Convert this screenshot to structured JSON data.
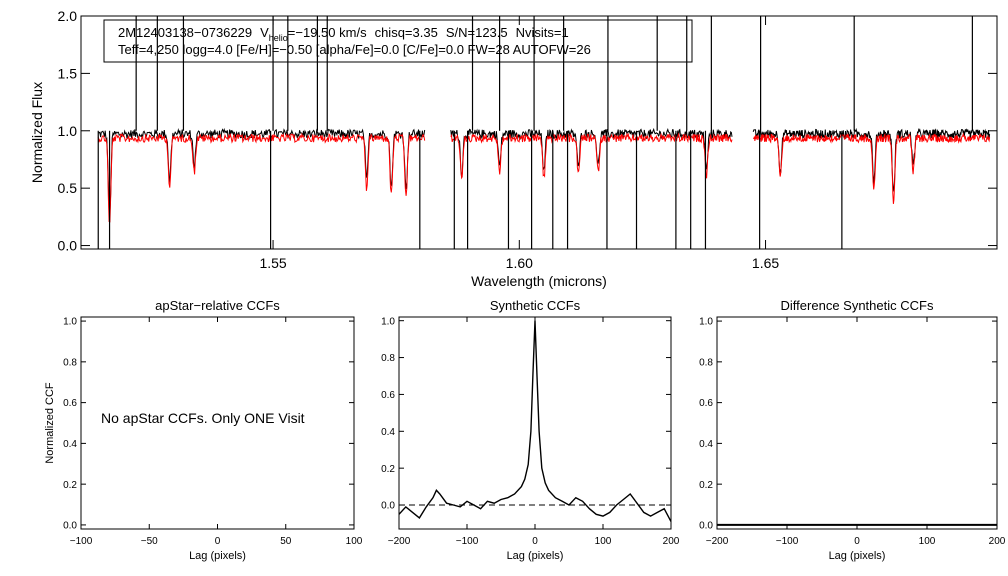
{
  "header": {
    "star_id": "2M12403138−0736229",
    "vhelio_symbol": "V",
    "vhelio_sub": "helio",
    "vhelio_value": "=−19.50 km/s",
    "chisq": "chisq=3.35",
    "snr": "S/N=123.5",
    "nvisits": "Nvisits=1",
    "params_line": "Teff=4,250 logg=4.0 [Fe/H]=−0.50 [alpha/Fe]=0.0 [C/Fe]=0.0 FW=28 AUTOFW=26"
  },
  "colors": {
    "observed": "#000000",
    "model": "#ff0000",
    "axes": "#000000"
  },
  "chart_data": [
    {
      "id": "spectrum",
      "type": "line",
      "title": "",
      "xlabel": "Wavelength (microns)",
      "ylabel": "Normalized Flux",
      "xlim": [
        1.511,
        1.697
      ],
      "ylim": [
        -0.03,
        2.0
      ],
      "xticks": [
        1.55,
        1.6,
        1.65
      ],
      "xtick_labels": [
        "1.55",
        "1.60",
        "1.65"
      ],
      "yticks": [
        0.0,
        0.5,
        1.0,
        1.5,
        2.0
      ],
      "ytick_labels": [
        "0.0",
        "0.5",
        "1.0",
        "1.5",
        "2.0"
      ],
      "chips": [
        [
          1.5145,
          1.5808
        ],
        [
          1.5861,
          1.6432
        ],
        [
          1.6475,
          1.6955
        ]
      ],
      "series": [
        {
          "name": "observed",
          "color": "#000000",
          "continuum": 0.98
        },
        {
          "name": "model",
          "color": "#ff0000",
          "continuum": 0.97
        }
      ],
      "spikes_up": [
        1.5222,
        1.5265,
        1.5318,
        1.55,
        1.553,
        1.559,
        1.561,
        1.5905,
        1.596,
        1.603,
        1.609,
        1.618,
        1.628,
        1.634,
        1.639,
        1.649,
        1.668,
        1.692
      ],
      "spikes_down": [
        1.5145,
        1.5168,
        1.5495,
        1.5798,
        1.5868,
        1.5895,
        1.5978,
        1.6025,
        1.6068,
        1.6098,
        1.6178,
        1.6238,
        1.6318,
        1.6348,
        1.6378,
        1.6488,
        1.6655
      ],
      "absorption_lines": [
        [
          1.5168,
          0.22
        ],
        [
          1.529,
          0.57
        ],
        [
          1.534,
          0.7
        ],
        [
          1.569,
          0.56
        ],
        [
          1.574,
          0.5
        ],
        [
          1.577,
          0.48
        ],
        [
          1.5883,
          0.63
        ],
        [
          1.596,
          0.7
        ],
        [
          1.605,
          0.65
        ],
        [
          1.612,
          0.68
        ],
        [
          1.616,
          0.7
        ],
        [
          1.638,
          0.66
        ],
        [
          1.653,
          0.66
        ],
        [
          1.672,
          0.55
        ],
        [
          1.676,
          0.45
        ],
        [
          1.68,
          0.7
        ]
      ]
    },
    {
      "id": "apstar_ccf",
      "type": "line",
      "title": "apStar−relative CCFs",
      "xlabel": "Lag (pixels)",
      "ylabel": "Normalized CCF",
      "xlim": [
        -100,
        100
      ],
      "ylim": [
        -0.02,
        1.02
      ],
      "xticks": [
        -100,
        -50,
        0,
        50,
        100
      ],
      "xtick_labels": [
        "−100",
        "−50",
        "0",
        "50",
        "100"
      ],
      "yticks": [
        0.0,
        0.2,
        0.4,
        0.6,
        0.8,
        1.0
      ],
      "ytick_labels": [
        "0.0",
        "0.2",
        "0.4",
        "0.6",
        "0.8",
        "1.0"
      ],
      "annotation": "No apStar CCFs.  Only ONE Visit",
      "series": []
    },
    {
      "id": "synthetic_ccf",
      "type": "line",
      "title": "Synthetic CCFs",
      "xlabel": "Lag (pixels)",
      "ylabel": "",
      "xlim": [
        -200,
        200
      ],
      "ylim": [
        -0.13,
        1.02
      ],
      "xticks": [
        -200,
        -100,
        0,
        100,
        200
      ],
      "xtick_labels": [
        "−200",
        "−100",
        "0",
        "100",
        "200"
      ],
      "yticks": [
        0.0,
        0.2,
        0.4,
        0.6,
        0.8,
        1.0
      ],
      "ytick_labels": [
        "0.0",
        "0.2",
        "0.4",
        "0.6",
        "0.8",
        "1.0"
      ],
      "zero_line": true,
      "series": [
        {
          "name": "synthetic",
          "x": [
            -200,
            -190,
            -180,
            -170,
            -160,
            -150,
            -145,
            -140,
            -130,
            -120,
            -110,
            -100,
            -90,
            -80,
            -70,
            -60,
            -50,
            -40,
            -30,
            -20,
            -15,
            -10,
            -6,
            -3,
            0,
            3,
            6,
            10,
            15,
            20,
            30,
            40,
            50,
            60,
            70,
            80,
            90,
            100,
            110,
            120,
            130,
            140,
            150,
            160,
            170,
            180,
            190,
            200
          ],
          "y": [
            -0.05,
            -0.01,
            -0.04,
            -0.07,
            -0.01,
            0.04,
            0.08,
            0.06,
            0.01,
            0.0,
            -0.01,
            0.02,
            0.0,
            -0.02,
            0.02,
            0.01,
            0.03,
            0.04,
            0.06,
            0.1,
            0.14,
            0.22,
            0.4,
            0.72,
            1.0,
            0.7,
            0.4,
            0.2,
            0.12,
            0.08,
            0.04,
            0.02,
            0.0,
            0.04,
            0.02,
            -0.02,
            -0.05,
            -0.06,
            -0.04,
            0.0,
            0.03,
            0.06,
            0.01,
            -0.04,
            -0.06,
            -0.04,
            -0.02,
            -0.09
          ]
        }
      ]
    },
    {
      "id": "difference_ccf",
      "type": "line",
      "title": "Difference Synthetic CCFs",
      "xlabel": "Lag (pixels)",
      "ylabel": "",
      "xlim": [
        -200,
        200
      ],
      "ylim": [
        -0.02,
        1.02
      ],
      "xticks": [
        -200,
        -100,
        0,
        100,
        200
      ],
      "xtick_labels": [
        "−200",
        "−100",
        "0",
        "100",
        "200"
      ],
      "yticks": [
        0.0,
        0.2,
        0.4,
        0.6,
        0.8,
        1.0
      ],
      "ytick_labels": [
        "0.0",
        "0.2",
        "0.4",
        "0.6",
        "0.8",
        "1.0"
      ],
      "series": [
        {
          "name": "difference",
          "x": [
            -200,
            200
          ],
          "y": [
            0.0,
            0.0
          ]
        }
      ]
    }
  ]
}
